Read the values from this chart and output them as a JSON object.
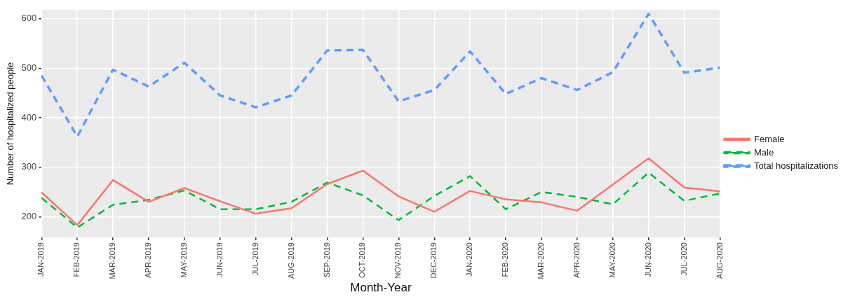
{
  "chart_data": {
    "type": "line",
    "xlabel": "Month-Year",
    "ylabel": "Number of hospitalized people",
    "categories": [
      "JAN-2019",
      "FEB-2019",
      "MAR-2019",
      "APR-2019",
      "MAY-2019",
      "JUN-2019",
      "JUL-2019",
      "AUG-2019",
      "SEP-2019",
      "OCT-2019",
      "NOV-2019",
      "DEC-2019",
      "JAN-2020",
      "FEB-2020",
      "MAR-2020",
      "APR-2020",
      "MAY-2020",
      "JUN-2020",
      "JUL-2020",
      "AUG-2020"
    ],
    "series": [
      {
        "name": "Female",
        "color": "#f8766d",
        "line_style": "solid",
        "values": [
          249,
          183,
          274,
          230,
          258,
          231,
          206,
          217,
          266,
          293,
          241,
          210,
          252,
          235,
          229,
          212,
          265,
          318,
          259,
          251
        ]
      },
      {
        "name": "Male",
        "color": "#00ba38",
        "line_style": "dashed",
        "values": [
          238,
          178,
          224,
          234,
          253,
          215,
          215,
          230,
          269,
          243,
          193,
          242,
          282,
          215,
          250,
          240,
          225,
          289,
          232,
          247
        ]
      },
      {
        "name": "Total hospitalizations",
        "color": "#619cff",
        "line_style": "dashed",
        "values": [
          485,
          362,
          497,
          463,
          511,
          445,
          421,
          445,
          536,
          537,
          433,
          456,
          534,
          448,
          480,
          456,
          492,
          610,
          491,
          501
        ]
      }
    ],
    "ylim": [
      158,
      618
    ],
    "yticks": [
      200,
      300,
      400,
      500,
      600
    ],
    "grid": true,
    "legend": "right",
    "marker": "none"
  }
}
